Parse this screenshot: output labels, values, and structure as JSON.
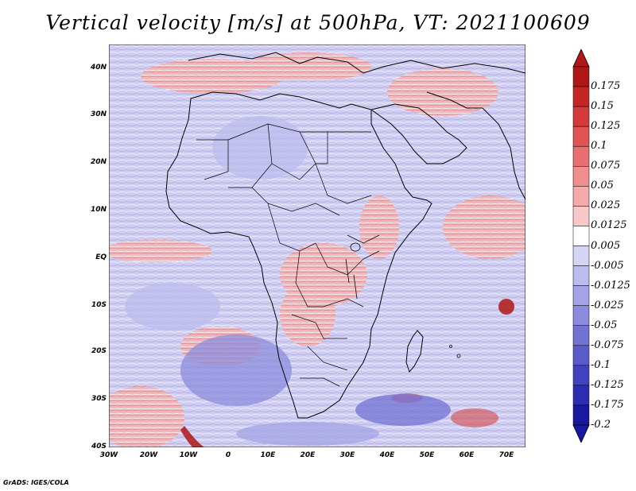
{
  "title": "Vertical velocity [m/s] at 500hPa, VT: 2021100609",
  "footer": "GrADS: IGES/COLA",
  "lat_labels": [
    "40N",
    "30N",
    "20N",
    "10N",
    "EQ",
    "10S",
    "20S",
    "30S",
    "40S"
  ],
  "lon_labels": [
    "30W",
    "20W",
    "10W",
    "0",
    "10E",
    "20E",
    "30E",
    "40E",
    "50E",
    "60E",
    "70E"
  ],
  "colorbar": {
    "labels": [
      "0.175",
      "0.15",
      "0.125",
      "0.1",
      "0.075",
      "0.05",
      "0.025",
      "0.0125",
      "0.005",
      "-0.005",
      "-0.0125",
      "-0.025",
      "-0.05",
      "-0.075",
      "-0.1",
      "-0.125",
      "-0.175",
      "-0.2"
    ],
    "colors": [
      "#b01818",
      "#c42626",
      "#d43a3a",
      "#e05454",
      "#e87070",
      "#ef8e8e",
      "#f4aaaa",
      "#f8c8c8",
      "#ffffff",
      "#d4d4f4",
      "#bcbcee",
      "#a4a4e6",
      "#8c8cde",
      "#7272d4",
      "#5a5acb",
      "#4242c0",
      "#2c2cb2",
      "#1818a0"
    ]
  },
  "map": {
    "lon_range": [
      -30,
      75
    ],
    "lat_range": [
      -40,
      45
    ],
    "field": "vertical velocity",
    "background": "#c8c8ee"
  }
}
